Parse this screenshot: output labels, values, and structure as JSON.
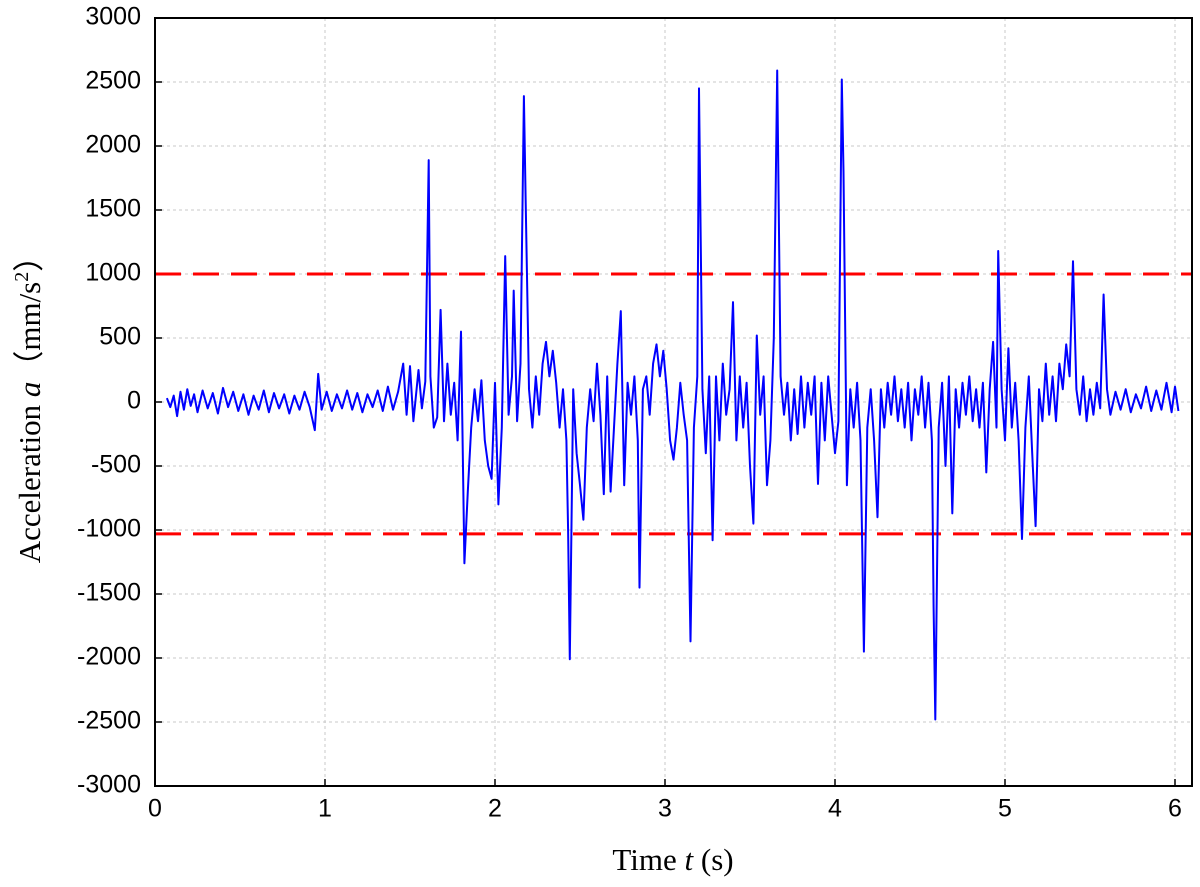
{
  "chart_data": {
    "type": "line",
    "xlabel": {
      "text": "Time",
      "symbol": "t",
      "unit": "(s)"
    },
    "ylabel": {
      "text": "Acceleration",
      "symbol": "a",
      "unit": "（mm/s",
      "exp": "2",
      "close": "）"
    },
    "xlim": [
      0,
      6.1
    ],
    "ylim": [
      -3000,
      3000
    ],
    "xticks": [
      0,
      1,
      2,
      3,
      4,
      5,
      6
    ],
    "yticks": [
      -3000,
      -2500,
      -2000,
      -1500,
      -1000,
      -500,
      0,
      500,
      1000,
      1500,
      2000,
      2500,
      3000
    ],
    "grid": true,
    "reference_lines": [
      {
        "value": 1000,
        "color": "#ff0000"
      },
      {
        "value": -1030,
        "color": "#ff0000"
      }
    ],
    "x": [
      0.07,
      0.09,
      0.11,
      0.13,
      0.15,
      0.17,
      0.19,
      0.21,
      0.23,
      0.25,
      0.28,
      0.31,
      0.34,
      0.37,
      0.4,
      0.43,
      0.46,
      0.49,
      0.52,
      0.55,
      0.58,
      0.61,
      0.64,
      0.67,
      0.7,
      0.73,
      0.76,
      0.79,
      0.82,
      0.85,
      0.88,
      0.91,
      0.94,
      0.96,
      0.98,
      1.01,
      1.04,
      1.07,
      1.1,
      1.13,
      1.16,
      1.19,
      1.22,
      1.25,
      1.28,
      1.31,
      1.34,
      1.37,
      1.4,
      1.43,
      1.46,
      1.48,
      1.5,
      1.52,
      1.55,
      1.57,
      1.59,
      1.61,
      1.62,
      1.64,
      1.66,
      1.68,
      1.7,
      1.72,
      1.74,
      1.76,
      1.78,
      1.8,
      1.82,
      1.84,
      1.86,
      1.88,
      1.9,
      1.92,
      1.94,
      1.96,
      1.98,
      2.0,
      2.02,
      2.04,
      2.06,
      2.08,
      2.1,
      2.11,
      2.13,
      2.15,
      2.17,
      2.18,
      2.2,
      2.22,
      2.24,
      2.26,
      2.28,
      2.3,
      2.32,
      2.34,
      2.36,
      2.38,
      2.4,
      2.42,
      2.43,
      2.44,
      2.46,
      2.48,
      2.5,
      2.52,
      2.54,
      2.56,
      2.58,
      2.6,
      2.62,
      2.64,
      2.66,
      2.68,
      2.7,
      2.72,
      2.74,
      2.76,
      2.78,
      2.8,
      2.82,
      2.84,
      2.85,
      2.87,
      2.89,
      2.91,
      2.93,
      2.95,
      2.97,
      2.99,
      3.01,
      3.03,
      3.05,
      3.07,
      3.09,
      3.11,
      3.13,
      3.15,
      3.17,
      3.19,
      3.2,
      3.22,
      3.24,
      3.26,
      3.28,
      3.3,
      3.32,
      3.34,
      3.36,
      3.38,
      3.4,
      3.42,
      3.44,
      3.46,
      3.48,
      3.5,
      3.52,
      3.54,
      3.56,
      3.58,
      3.6,
      3.62,
      3.64,
      3.66,
      3.68,
      3.7,
      3.72,
      3.74,
      3.76,
      3.78,
      3.8,
      3.82,
      3.84,
      3.86,
      3.88,
      3.9,
      3.92,
      3.94,
      3.96,
      3.98,
      4.0,
      4.02,
      4.04,
      4.05,
      4.07,
      4.09,
      4.11,
      4.13,
      4.15,
      4.17,
      4.19,
      4.21,
      4.23,
      4.25,
      4.27,
      4.29,
      4.31,
      4.33,
      4.35,
      4.37,
      4.39,
      4.41,
      4.43,
      4.45,
      4.47,
      4.49,
      4.51,
      4.53,
      4.55,
      4.57,
      4.58,
      4.59,
      4.61,
      4.63,
      4.65,
      4.67,
      4.69,
      4.71,
      4.73,
      4.75,
      4.77,
      4.79,
      4.81,
      4.83,
      4.85,
      4.87,
      4.89,
      4.91,
      4.93,
      4.95,
      4.96,
      4.98,
      5.0,
      5.02,
      5.04,
      5.06,
      5.08,
      5.1,
      5.12,
      5.14,
      5.16,
      5.18,
      5.2,
      5.22,
      5.24,
      5.26,
      5.28,
      5.3,
      5.32,
      5.34,
      5.36,
      5.38,
      5.4,
      5.42,
      5.44,
      5.46,
      5.48,
      5.5,
      5.52,
      5.54,
      5.56,
      5.58,
      5.6,
      5.62,
      5.65,
      5.68,
      5.71,
      5.74,
      5.77,
      5.8,
      5.83,
      5.86,
      5.89,
      5.92,
      5.95,
      5.98,
      6.0,
      6.02
    ],
    "series": [
      {
        "color": "#0000ff",
        "values": [
          30,
          -40,
          50,
          -110,
          80,
          -60,
          100,
          -30,
          60,
          -80,
          90,
          -50,
          70,
          -90,
          110,
          -40,
          80,
          -70,
          60,
          -100,
          50,
          -60,
          90,
          -80,
          70,
          -50,
          60,
          -90,
          50,
          -60,
          80,
          -40,
          -220,
          220,
          -60,
          80,
          -70,
          60,
          -50,
          90,
          -60,
          70,
          -80,
          60,
          -40,
          90,
          -70,
          120,
          -60,
          80,
          300,
          -100,
          280,
          -150,
          250,
          -50,
          160,
          1890,
          200,
          -200,
          -120,
          720,
          -150,
          300,
          -100,
          150,
          -300,
          550,
          -1260,
          -700,
          -200,
          100,
          -150,
          170,
          -300,
          -500,
          -600,
          150,
          -800,
          -200,
          1140,
          -100,
          200,
          870,
          -150,
          300,
          2390,
          1600,
          100,
          -200,
          200,
          -100,
          300,
          470,
          200,
          400,
          150,
          -200,
          100,
          -300,
          -1000,
          -2010,
          100,
          -400,
          -650,
          -920,
          -200,
          100,
          -150,
          300,
          -100,
          -720,
          200,
          -700,
          -200,
          300,
          710,
          -650,
          150,
          -100,
          200,
          -300,
          -1450,
          100,
          200,
          -100,
          300,
          450,
          200,
          400,
          100,
          -300,
          -450,
          -200,
          150,
          -100,
          -300,
          -1870,
          -200,
          200,
          2450,
          100,
          -400,
          200,
          -1080,
          200,
          -300,
          300,
          -100,
          100,
          780,
          -300,
          200,
          -200,
          150,
          -500,
          -950,
          520,
          -100,
          200,
          -650,
          -300,
          500,
          2590,
          200,
          -100,
          150,
          -300,
          100,
          -250,
          200,
          -200,
          150,
          -100,
          200,
          -640,
          150,
          -300,
          200,
          -100,
          -400,
          -150,
          2520,
          1800,
          -650,
          100,
          -200,
          150,
          -300,
          -1950,
          -200,
          100,
          -300,
          -900,
          100,
          -200,
          150,
          -100,
          200,
          -150,
          100,
          -200,
          150,
          -300,
          100,
          -100,
          200,
          -200,
          150,
          -300,
          -1600,
          -2480,
          -200,
          150,
          -500,
          200,
          -870,
          100,
          -200,
          150,
          -100,
          200,
          -150,
          100,
          -200,
          150,
          -550,
          100,
          470,
          -200,
          1180,
          100,
          -300,
          420,
          -200,
          150,
          -300,
          -1070,
          -200,
          200,
          -400,
          -970,
          100,
          -150,
          300,
          -100,
          200,
          -150,
          300,
          100,
          450,
          200,
          1100,
          100,
          -100,
          200,
          -150,
          100,
          -100,
          150,
          -50,
          840,
          100,
          -100,
          80,
          -60,
          100,
          -80,
          60,
          -50,
          120,
          -70,
          90,
          -60,
          150,
          -80,
          120,
          -70
        ]
      }
    ]
  }
}
